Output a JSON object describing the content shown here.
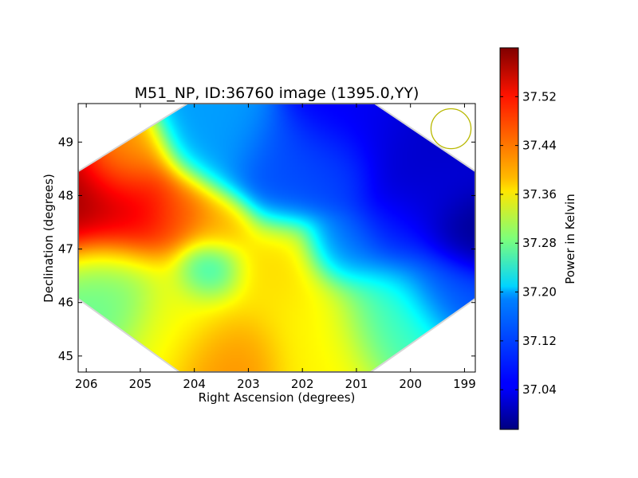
{
  "chart_data": {
    "type": "heatmap",
    "title": "M51_NP, ID:36760 image (1395.0,YY)",
    "xlabel": "Right Ascension (degrees)",
    "ylabel": "Declination (degrees)",
    "xlim": [
      206.15,
      198.8
    ],
    "ylim": [
      44.7,
      49.72
    ],
    "x_ticks": [
      "206",
      "205",
      "204",
      "203",
      "202",
      "201",
      "200",
      "199"
    ],
    "x_tick_values": [
      206,
      205,
      204,
      203,
      202,
      201,
      200,
      199
    ],
    "y_ticks": [
      "49",
      "48",
      "47",
      "46",
      "45"
    ],
    "y_tick_values": [
      49,
      48,
      47,
      46,
      45
    ],
    "colorbar": {
      "label": "Power in Kelvin",
      "range": [
        36.975,
        37.6
      ],
      "ticks": [
        "37.52",
        "37.44",
        "37.36",
        "37.28",
        "37.20",
        "37.12",
        "37.04"
      ],
      "tick_values": [
        37.52,
        37.44,
        37.36,
        37.28,
        37.2,
        37.12,
        37.04
      ],
      "colormap": "jet"
    },
    "field_blobs": [
      {
        "ra": 205.8,
        "dec": 47.85,
        "value": 37.59,
        "spread": 0.65
      },
      {
        "ra": 205.0,
        "dec": 47.7,
        "value": 37.52,
        "spread": 0.55
      },
      {
        "ra": 204.2,
        "dec": 47.7,
        "value": 37.46,
        "spread": 0.42
      },
      {
        "ra": 205.3,
        "dec": 48.6,
        "value": 37.4,
        "spread": 0.45
      },
      {
        "ra": 203.5,
        "dec": 47.4,
        "value": 37.42,
        "spread": 0.35
      },
      {
        "ra": 203.3,
        "dec": 45.1,
        "value": 37.44,
        "spread": 0.5
      },
      {
        "ra": 202.6,
        "dec": 46.6,
        "value": 37.39,
        "spread": 0.55
      },
      {
        "ra": 201.8,
        "dec": 45.6,
        "value": 37.37,
        "spread": 0.7
      },
      {
        "ra": 204.0,
        "dec": 46.0,
        "value": 37.36,
        "spread": 0.7
      },
      {
        "ra": 205.6,
        "dec": 46.4,
        "value": 37.27,
        "spread": 0.55
      },
      {
        "ra": 203.7,
        "dec": 46.6,
        "value": 37.17,
        "spread": 0.33
      },
      {
        "ra": 200.4,
        "dec": 45.9,
        "value": 37.24,
        "spread": 0.55
      },
      {
        "ra": 203.6,
        "dec": 49.0,
        "value": 37.15,
        "spread": 0.55
      },
      {
        "ra": 202.4,
        "dec": 48.4,
        "value": 37.1,
        "spread": 0.55
      },
      {
        "ra": 201.0,
        "dec": 49.3,
        "value": 37.05,
        "spread": 0.6
      },
      {
        "ra": 201.4,
        "dec": 48.5,
        "value": 37.1,
        "spread": 0.45
      },
      {
        "ra": 200.0,
        "dec": 48.8,
        "value": 37.02,
        "spread": 0.6
      },
      {
        "ra": 199.6,
        "dec": 47.9,
        "value": 37.03,
        "spread": 0.5
      },
      {
        "ra": 199.0,
        "dec": 47.3,
        "value": 36.98,
        "spread": 0.4
      },
      {
        "ra": 200.3,
        "dec": 47.2,
        "value": 37.07,
        "spread": 0.5
      },
      {
        "ra": 201.2,
        "dec": 47.0,
        "value": 37.12,
        "spread": 0.4
      },
      {
        "ra": 199.4,
        "dec": 46.4,
        "value": 37.1,
        "spread": 0.45
      }
    ],
    "beam_circle": {
      "ra": 199.25,
      "dec": 49.25,
      "radius_deg": 0.37
    },
    "grid": false,
    "legend": "none"
  },
  "colors": {
    "beam_circle": "#b8b800",
    "axes": "#000000",
    "background": "#ffffff"
  }
}
